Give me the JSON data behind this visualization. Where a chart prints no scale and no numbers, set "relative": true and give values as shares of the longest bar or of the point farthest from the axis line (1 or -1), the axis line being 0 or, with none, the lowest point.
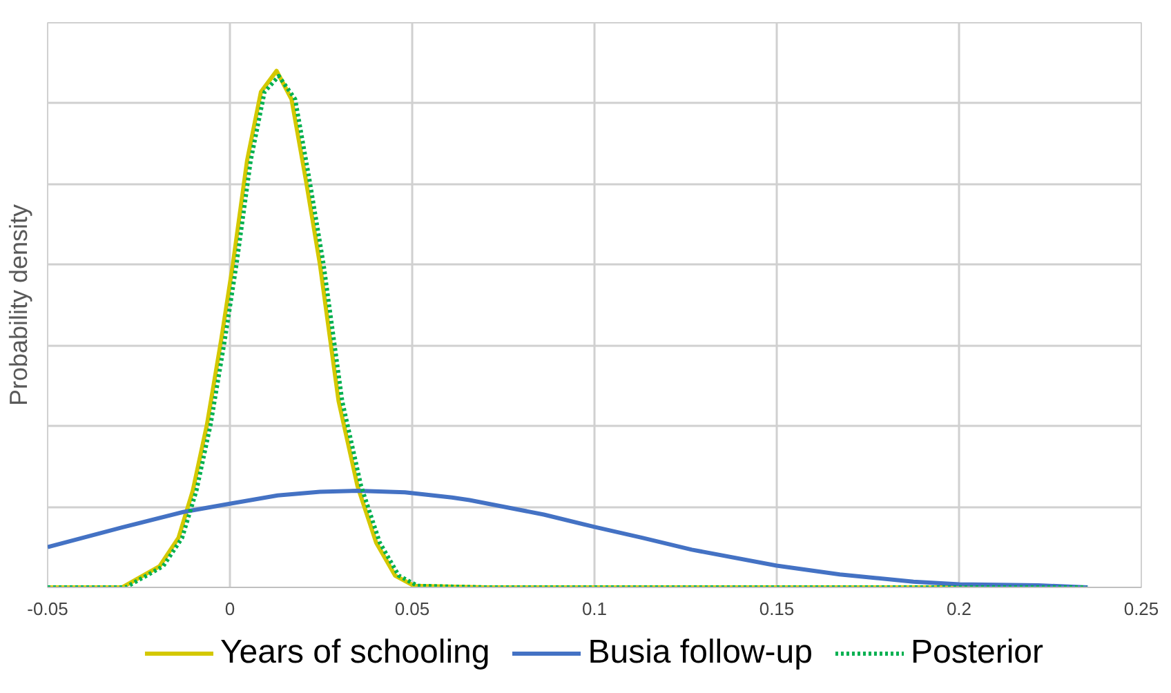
{
  "chart_data": {
    "type": "line",
    "relative": true,
    "ylabel": "Probability density",
    "xlim": [
      -0.05,
      0.25
    ],
    "xticks": [
      -0.05,
      0,
      0.05,
      0.1,
      0.15,
      0.2,
      0.25
    ],
    "grid": true,
    "legend": "bottom",
    "marker": "none",
    "series": [
      {
        "name": "Years of schooling",
        "color": "#d4c800",
        "line_style": "solid",
        "x": [
          -0.05,
          -0.0296,
          -0.0193,
          -0.0141,
          -0.0102,
          -0.0063,
          -0.0024,
          0.0008,
          0.0047,
          0.0085,
          0.0128,
          0.0169,
          0.0208,
          0.0247,
          0.0298,
          0.035,
          0.0401,
          0.0453,
          0.0505,
          0.07,
          0.1,
          0.15,
          0.2,
          0.235
        ],
        "values": [
          0,
          0,
          0.041,
          0.096,
          0.187,
          0.315,
          0.479,
          0.625,
          0.826,
          0.959,
          1,
          0.945,
          0.79,
          0.625,
          0.361,
          0.196,
          0.087,
          0.023,
          0.003,
          0,
          0,
          0,
          0,
          0
        ]
      },
      {
        "name": "Busia follow-up",
        "color": "#4472c4",
        "line_style": "solid",
        "x": [
          -0.05,
          -0.0296,
          -0.0128,
          0,
          0.0131,
          0.0247,
          0.035,
          0.048,
          0.0609,
          0.0657,
          0.0861,
          0.1,
          0.1131,
          0.1267,
          0.15,
          0.1673,
          0.1875,
          0.2,
          0.2217,
          0.2353
        ],
        "values": [
          0.078,
          0.116,
          0.146,
          0.162,
          0.178,
          0.185,
          0.187,
          0.184,
          0.174,
          0.169,
          0.141,
          0.117,
          0.096,
          0.073,
          0.042,
          0.025,
          0.011,
          0.006,
          0.004,
          0
        ]
      },
      {
        "name": "Posterior",
        "color": "#00b050",
        "line_style": "dotted",
        "x": [
          -0.05,
          -0.0286,
          -0.0183,
          -0.0131,
          -0.0092,
          -0.0053,
          -0.0014,
          0.0018,
          0.0057,
          0.0095,
          0.0134,
          0.0179,
          0.0218,
          0.0257,
          0.0308,
          0.036,
          0.0411,
          0.0463,
          0.0515,
          0.07,
          0.1,
          0.15,
          0.2,
          0.235
        ],
        "values": [
          0,
          0,
          0.041,
          0.096,
          0.187,
          0.315,
          0.479,
          0.625,
          0.826,
          0.959,
          0.99,
          0.945,
          0.79,
          0.625,
          0.361,
          0.196,
          0.087,
          0.023,
          0.003,
          0,
          0,
          0,
          0,
          0
        ]
      }
    ]
  }
}
